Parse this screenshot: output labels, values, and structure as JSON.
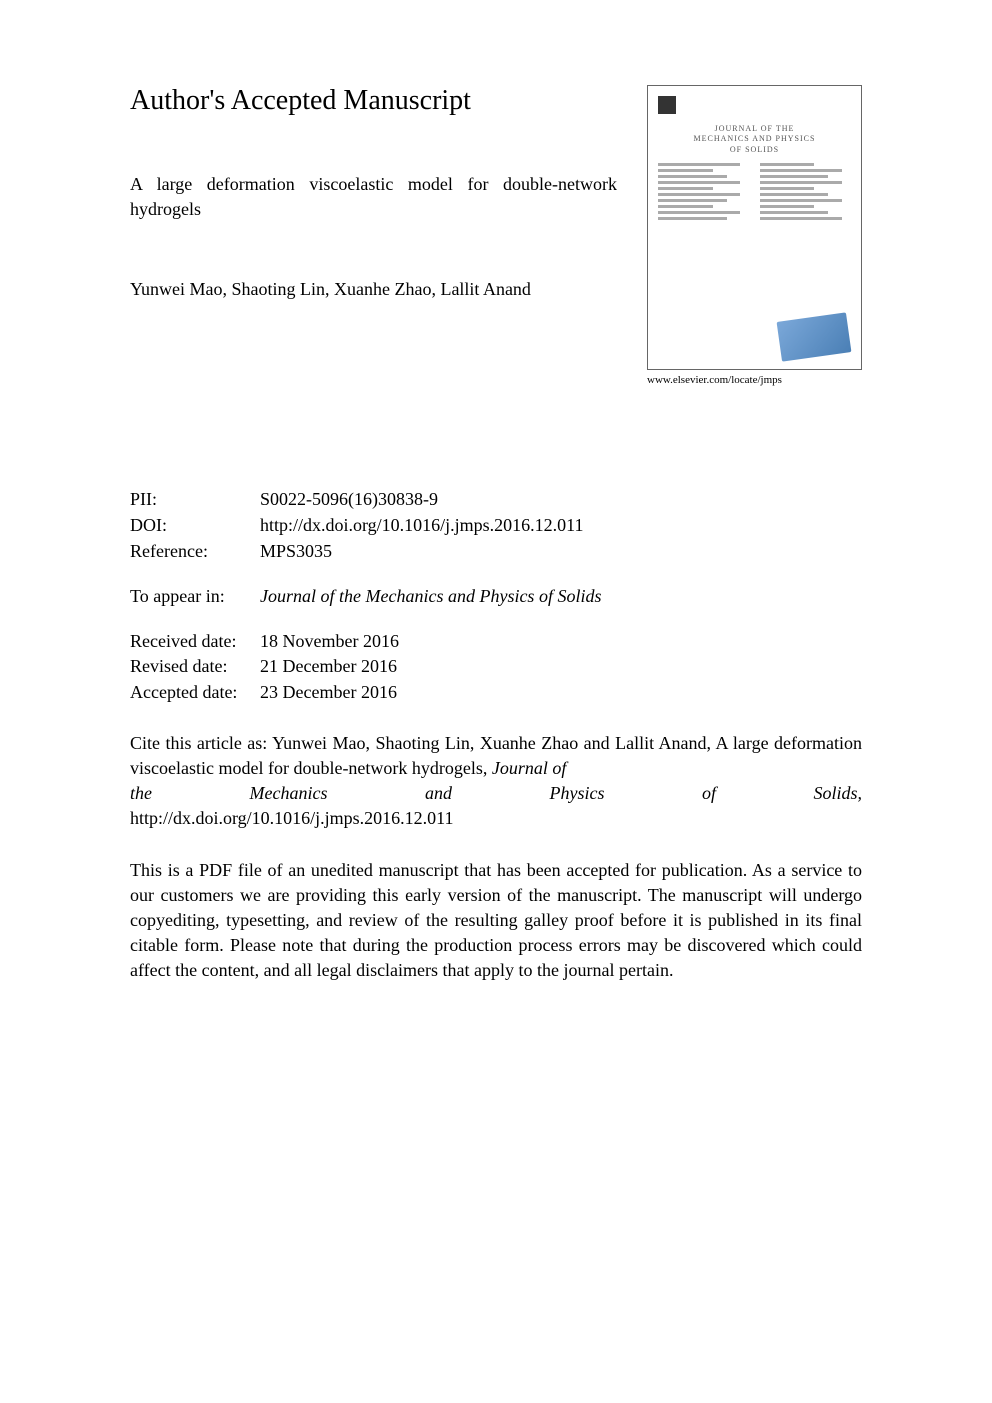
{
  "heading": "Author's Accepted Manuscript",
  "paper_title": "A large deformation viscoelastic model for double-network hydrogels",
  "authors": "Yunwei Mao, Shaoting Lin, Xuanhe Zhao, Lallit Anand",
  "cover": {
    "journal_title_line1": "JOURNAL OF THE",
    "journal_title_line2": "MECHANICS AND PHYSICS",
    "journal_title_line3": "OF SOLIDS",
    "caption": "www.elsevier.com/locate/jmps"
  },
  "meta": {
    "pii_label": "PII:",
    "pii_value": "S0022-5096(16)30838-9",
    "doi_label": "DOI:",
    "doi_value": "http://dx.doi.org/10.1016/j.jmps.2016.12.011",
    "ref_label": "Reference:",
    "ref_value": "MPS3035"
  },
  "appear": {
    "label": "To appear in:",
    "value": "Journal of the Mechanics and Physics of Solids"
  },
  "dates": {
    "received_label": "Received date:",
    "received_value": "18 November 2016",
    "revised_label": "Revised date:",
    "revised_value": "21 December 2016",
    "accepted_label": "Accepted date:",
    "accepted_value": "23 December 2016"
  },
  "citation": {
    "prefix": "Cite this article as: Yunwei Mao, Shaoting Lin, Xuanhe Zhao and Lallit Anand, A large deformation viscoelastic model for double-network hydrogels, ",
    "journal_line_word1": "the",
    "journal_line_word2": "Mechanics",
    "journal_line_word3": "and",
    "journal_line_word4": "Physics",
    "journal_line_word5": "of",
    "journal_line_word6": "Solids,",
    "journal_first": "Journal of",
    "doi": "http://dx.doi.org/10.1016/j.jmps.2016.12.011"
  },
  "disclaimer": "This is a PDF file of an unedited manuscript that has been accepted for publication. As a service to our customers we are providing this early version of the manuscript. The manuscript will undergo copyediting, typesetting, and review of the resulting galley proof before it is published in its final citable form. Please note that during the production process errors may be discovered which could affect the content, and all legal disclaimers that apply to the journal pertain."
}
